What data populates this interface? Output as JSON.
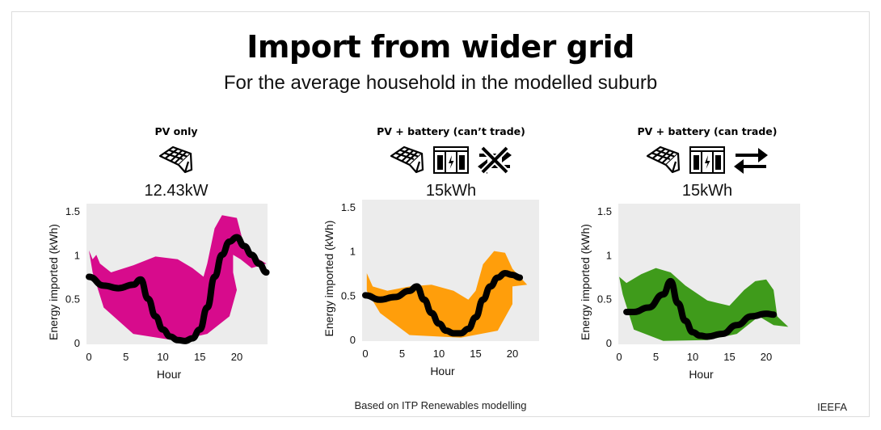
{
  "title": "Import from wider grid",
  "subtitle": "For the average household in the modelled suburb",
  "source": "Based on ITP Renewables modelling",
  "brand": "IEEFA",
  "icons": [
    "solar-panel-icon",
    "battery-icon",
    "no-trade-arrows-icon",
    "trade-arrows-icon"
  ],
  "colors": {
    "pink": "#d70b8c",
    "orange": "#ff9e0b",
    "green": "#3f9b1b",
    "plot_bg": "#ececec",
    "line": "#000000"
  },
  "panels": [
    {
      "title": "PV only",
      "value": "12.43kW"
    },
    {
      "title": "PV + battery (can’t trade)",
      "value": "15kWh"
    },
    {
      "title": "PV + battery (can trade)",
      "value": "15kWh"
    }
  ],
  "chart_data": [
    {
      "type": "line",
      "title": "PV only",
      "xlabel": "Hour",
      "ylabel": "Energy imported (kWh)",
      "xlim": [
        0,
        24
      ],
      "ylim": [
        0,
        1.6
      ],
      "xticks": [
        "0",
        "5",
        "10",
        "15",
        "20"
      ],
      "yticks": [
        "0",
        "0.5",
        "1",
        "1.5"
      ],
      "grid": false,
      "fill_color": "#d70b8c",
      "x": [
        0,
        2,
        4,
        6,
        7,
        8,
        9,
        10,
        11,
        12,
        13,
        14,
        15,
        16,
        17,
        18,
        19,
        20,
        21,
        22,
        23,
        24
      ],
      "y": [
        0.75,
        0.65,
        0.62,
        0.66,
        0.72,
        0.5,
        0.3,
        0.15,
        0.07,
        0.03,
        0.02,
        0.05,
        0.15,
        0.4,
        0.75,
        1.0,
        1.15,
        1.2,
        1.1,
        1.0,
        0.9,
        0.8
      ]
    },
    {
      "type": "line",
      "title": "PV + battery (can’t trade)",
      "xlabel": "Hour",
      "ylabel": "Energy imported (kWh)",
      "xlim": [
        0,
        24
      ],
      "ylim": [
        0,
        1.6
      ],
      "xticks": [
        "0",
        "5",
        "10",
        "15",
        "20"
      ],
      "yticks": [
        "0",
        "0.5",
        "1",
        "1.5"
      ],
      "grid": false,
      "fill_color": "#ff9e0b",
      "x": [
        0,
        2,
        4,
        6,
        7,
        8,
        9,
        10,
        11,
        12,
        13,
        14,
        15,
        16,
        17,
        18,
        19,
        20,
        21
      ],
      "y": [
        0.5,
        0.45,
        0.48,
        0.55,
        0.6,
        0.45,
        0.3,
        0.18,
        0.1,
        0.07,
        0.07,
        0.12,
        0.25,
        0.45,
        0.6,
        0.7,
        0.75,
        0.73,
        0.7
      ]
    },
    {
      "type": "line",
      "title": "PV + battery (can trade)",
      "xlabel": "Hour",
      "ylabel": "Energy imported (kWh)",
      "xlim": [
        0,
        24
      ],
      "ylim": [
        0,
        1.6
      ],
      "xticks": [
        "0",
        "5",
        "10",
        "15",
        "20"
      ],
      "yticks": [
        "0",
        "0.5",
        "1",
        "1.5"
      ],
      "grid": false,
      "fill_color": "#3f9b1b",
      "x": [
        1,
        2,
        4,
        6,
        7,
        8,
        9,
        10,
        11,
        12,
        14,
        16,
        18,
        20,
        21
      ],
      "y": [
        0.35,
        0.35,
        0.4,
        0.55,
        0.7,
        0.45,
        0.25,
        0.12,
        0.08,
        0.07,
        0.1,
        0.2,
        0.3,
        0.33,
        0.32
      ]
    }
  ]
}
